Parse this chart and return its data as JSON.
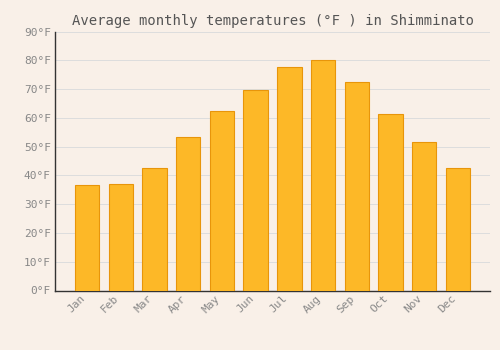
{
  "title": "Average monthly temperatures (°F ) in Shimminato",
  "months": [
    "Jan",
    "Feb",
    "Mar",
    "Apr",
    "May",
    "Jun",
    "Jul",
    "Aug",
    "Sep",
    "Oct",
    "Nov",
    "Dec"
  ],
  "values": [
    36.5,
    37.0,
    42.5,
    53.5,
    62.5,
    69.5,
    77.5,
    80.0,
    72.5,
    61.5,
    51.5,
    42.5
  ],
  "bar_color_main": "#FDB827",
  "bar_color_edge": "#E8950A",
  "background_color": "#f9f0e8",
  "grid_color": "#dddddd",
  "text_color": "#888888",
  "spine_color": "#333333",
  "title_color": "#555555",
  "ylim": [
    0,
    90
  ],
  "yticks": [
    0,
    10,
    20,
    30,
    40,
    50,
    60,
    70,
    80,
    90
  ],
  "title_fontsize": 10,
  "tick_fontsize": 8,
  "bar_width": 0.72
}
